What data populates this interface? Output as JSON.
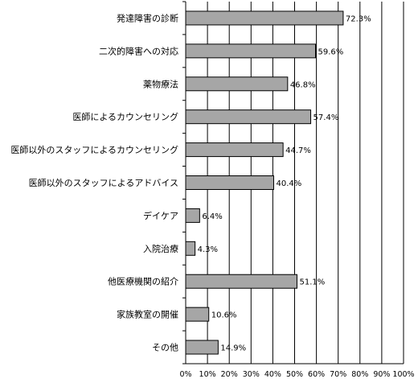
{
  "chart_data": {
    "type": "bar",
    "orientation": "horizontal",
    "categories": [
      "発達障害の診断",
      "二次的障害への対応",
      "薬物療法",
      "医師によるカウンセリング",
      "医師以外のスタッフによるカウンセリング",
      "医師以外のスタッフによるアドバイス",
      "デイケア",
      "入院治療",
      "他医療機関の紹介",
      "家族教室の開催",
      "その他"
    ],
    "values": [
      72.3,
      59.6,
      46.8,
      57.4,
      44.7,
      40.4,
      6.4,
      4.3,
      51.1,
      10.6,
      14.9
    ],
    "value_labels": [
      "72.3%",
      "59.6%",
      "46.8%",
      "57.4%",
      "44.7%",
      "40.4%",
      "6.4%",
      "4.3%",
      "51.1%",
      "10.6%",
      "14.9%"
    ],
    "x_ticks": [
      "0%",
      "10%",
      "20%",
      "30%",
      "40%",
      "50%",
      "60%",
      "70%",
      "80%",
      "90%",
      "100%"
    ],
    "xlim": [
      0,
      100
    ],
    "grid": true,
    "title": "",
    "xlabel": "",
    "ylabel": "",
    "colors": {
      "bar": "#a6a6a6",
      "bar_border": "#000000",
      "grid": "#000000"
    }
  }
}
